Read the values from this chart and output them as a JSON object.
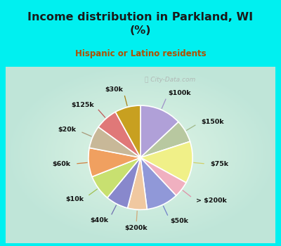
{
  "title": "Income distribution in Parkland, WI\n(%)",
  "subtitle": "Hispanic or Latino residents",
  "title_color": "#1a1a1a",
  "subtitle_color": "#b05000",
  "bg_cyan": "#00f0f0",
  "watermark": "ⓘ City-Data.com",
  "labels": [
    "$100k",
    "$150k",
    "$75k",
    "> $200k",
    "$50k",
    "$200k",
    "$40k",
    "$10k",
    "$60k",
    "$20k",
    "$125k",
    "$30k"
  ],
  "values": [
    13,
    7,
    13,
    5,
    10,
    6,
    7,
    8,
    9,
    7,
    7,
    8
  ],
  "colors": [
    "#b0a0d8",
    "#b8c8a0",
    "#f0f088",
    "#f0b0c0",
    "#9098d8",
    "#f0c8a0",
    "#8888cc",
    "#c8e070",
    "#f0a060",
    "#c8b898",
    "#e07878",
    "#c8a020"
  ],
  "line_colors": [
    "#a090c8",
    "#a0b888",
    "#d0d068",
    "#e090a8",
    "#7080c8",
    "#d0a878",
    "#7070b0",
    "#a0c050",
    "#d08040",
    "#a89878",
    "#c05858",
    "#a88010"
  ]
}
